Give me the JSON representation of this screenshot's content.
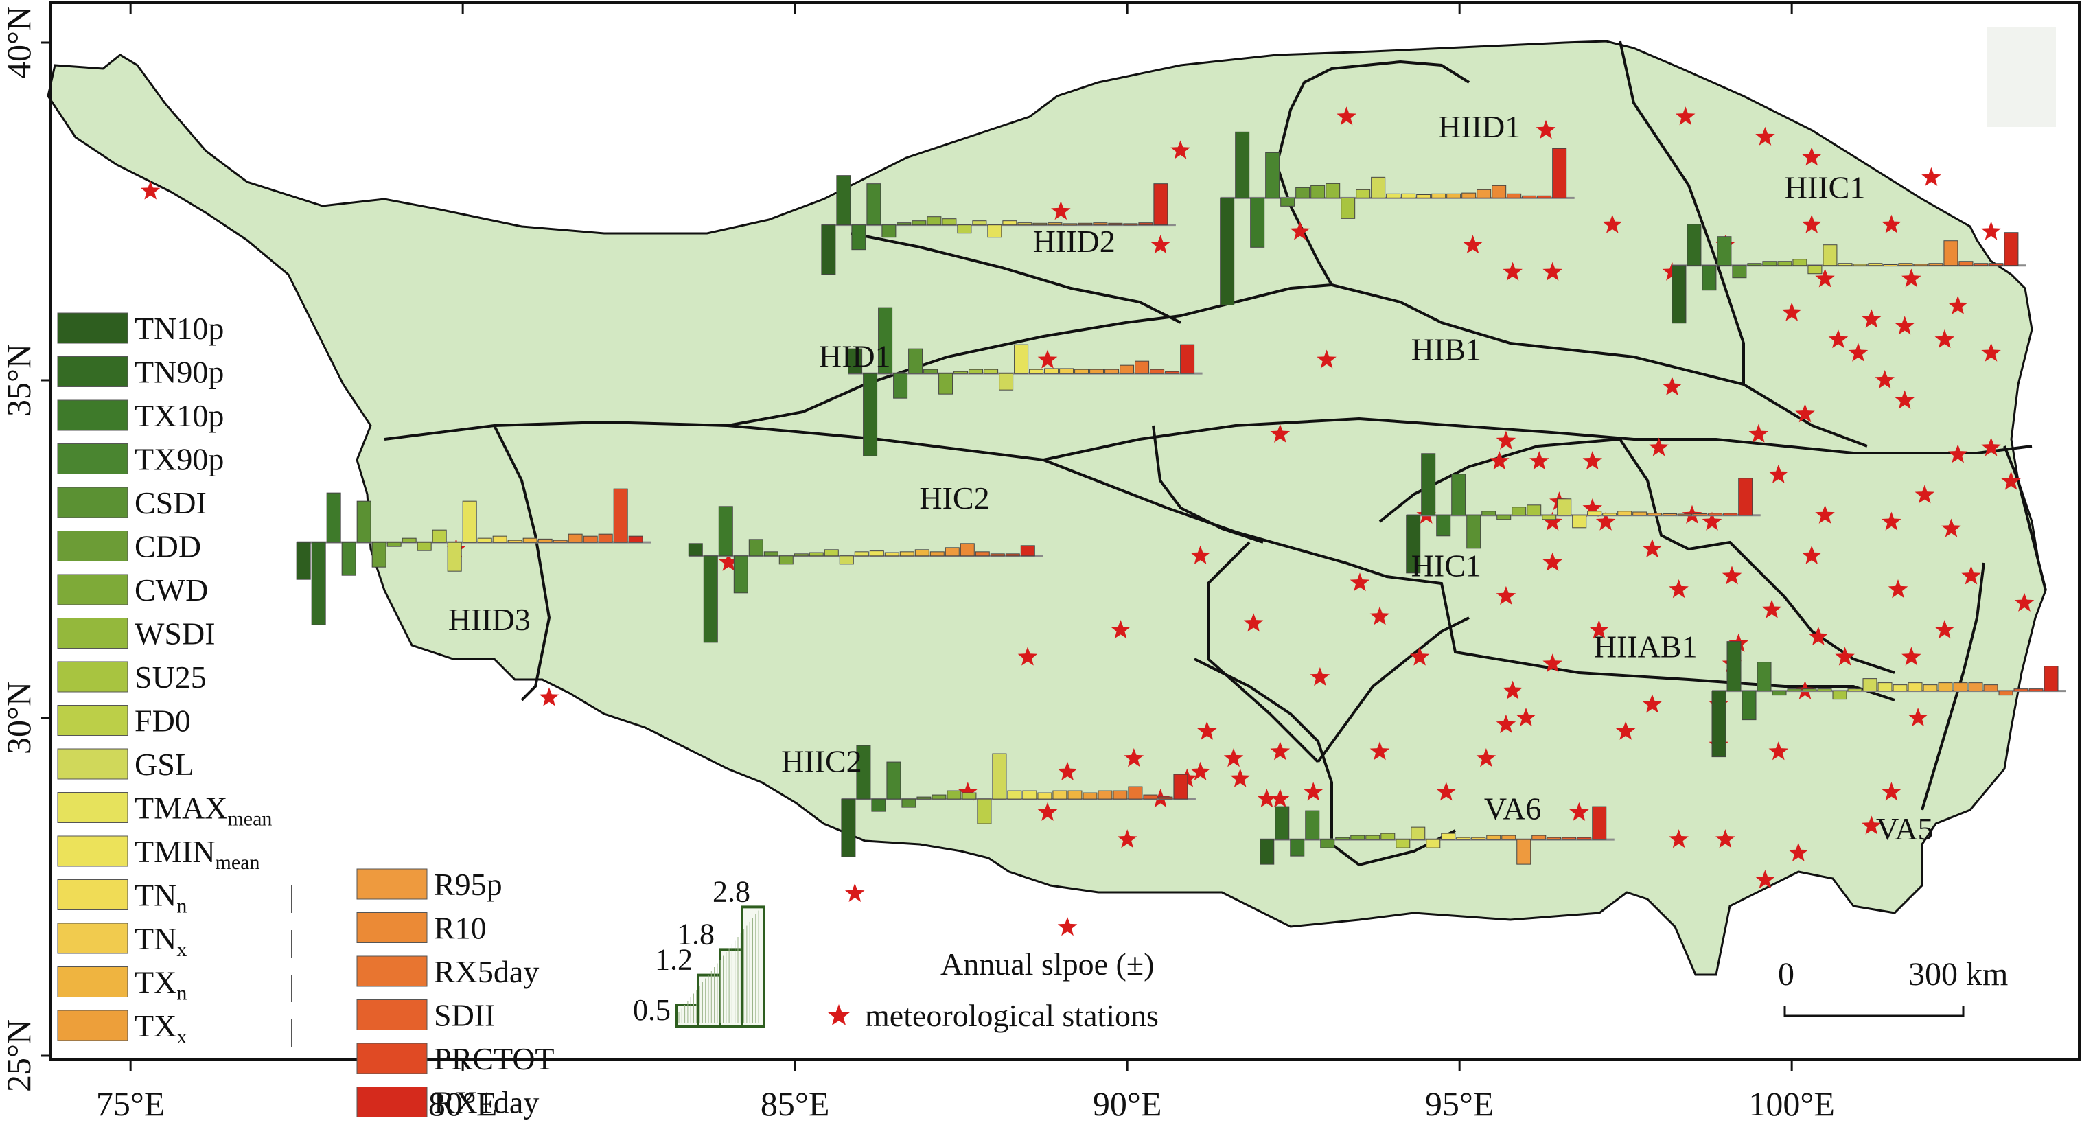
{
  "map": {
    "lon_ticks": [
      {
        "value": 75,
        "label": "75°E"
      },
      {
        "value": 80,
        "label": "80°E"
      },
      {
        "value": 85,
        "label": "85°E"
      },
      {
        "value": 90,
        "label": "90°E"
      },
      {
        "value": 95,
        "label": "95°E"
      },
      {
        "value": 100,
        "label": "100°E"
      }
    ],
    "lat_ticks": [
      {
        "value": 40,
        "label": "40°N"
      },
      {
        "value": 35,
        "label": "35°N"
      },
      {
        "value": 30,
        "label": "30°N"
      },
      {
        "value": 25,
        "label": "25°N"
      }
    ],
    "region_labels": [
      {
        "name": "HIID1",
        "lon": 95.3,
        "lat": 38.6
      },
      {
        "name": "HIIC1",
        "lon": 100.5,
        "lat": 37.7
      },
      {
        "name": "HIID2",
        "lon": 89.2,
        "lat": 36.9
      },
      {
        "name": "HID1",
        "lon": 85.9,
        "lat": 35.2
      },
      {
        "name": "HIB1",
        "lon": 94.8,
        "lat": 35.3
      },
      {
        "name": "HIC2",
        "lon": 87.4,
        "lat": 33.1
      },
      {
        "name": "HIC1",
        "lon": 94.8,
        "lat": 32.1
      },
      {
        "name": "HIID3",
        "lon": 80.4,
        "lat": 31.3
      },
      {
        "name": "HIIAB1",
        "lon": 97.8,
        "lat": 30.9
      },
      {
        "name": "HIIC2",
        "lon": 85.4,
        "lat": 29.2
      },
      {
        "name": "VA6",
        "lon": 95.8,
        "lat": 28.5
      },
      {
        "name": "VA5",
        "lon": 101.7,
        "lat": 28.2
      }
    ],
    "stations": [
      [
        75.3,
        37.8
      ],
      [
        90.8,
        38.4
      ],
      [
        93.3,
        38.9
      ],
      [
        96.3,
        38.7
      ],
      [
        98.4,
        38.9
      ],
      [
        99.6,
        38.6
      ],
      [
        100.3,
        38.3
      ],
      [
        102.1,
        38.0
      ],
      [
        89.0,
        37.5
      ],
      [
        90.5,
        37.0
      ],
      [
        92.6,
        37.2
      ],
      [
        97.3,
        37.3
      ],
      [
        100.3,
        37.3
      ],
      [
        101.5,
        37.3
      ],
      [
        103.0,
        37.2
      ],
      [
        95.2,
        37.0
      ],
      [
        99.0,
        37.0
      ],
      [
        95.8,
        36.6
      ],
      [
        96.4,
        36.6
      ],
      [
        98.2,
        36.6
      ],
      [
        100.5,
        36.5
      ],
      [
        101.8,
        36.5
      ],
      [
        102.5,
        36.1
      ],
      [
        100.0,
        36.0
      ],
      [
        101.2,
        35.9
      ],
      [
        101.7,
        35.8
      ],
      [
        100.7,
        35.6
      ],
      [
        101.0,
        35.4
      ],
      [
        102.3,
        35.6
      ],
      [
        88.8,
        35.3
      ],
      [
        93.0,
        35.3
      ],
      [
        103.0,
        35.4
      ],
      [
        98.2,
        34.9
      ],
      [
        101.4,
        35.0
      ],
      [
        101.7,
        34.7
      ],
      [
        100.2,
        34.5
      ],
      [
        92.3,
        34.2
      ],
      [
        95.7,
        34.1
      ],
      [
        99.5,
        34.2
      ],
      [
        102.5,
        33.9
      ],
      [
        95.6,
        33.8
      ],
      [
        98.0,
        34.0
      ],
      [
        103.0,
        34.0
      ],
      [
        96.2,
        33.8
      ],
      [
        97.0,
        33.8
      ],
      [
        99.8,
        33.6
      ],
      [
        102.0,
        33.3
      ],
      [
        103.3,
        33.5
      ],
      [
        96.5,
        33.2
      ],
      [
        97.0,
        33.1
      ],
      [
        98.5,
        33.0
      ],
      [
        100.5,
        33.0
      ],
      [
        101.5,
        32.9
      ],
      [
        102.4,
        32.8
      ],
      [
        94.5,
        33.0
      ],
      [
        96.4,
        32.9
      ],
      [
        97.2,
        32.9
      ],
      [
        98.8,
        32.9
      ],
      [
        79.9,
        32.5
      ],
      [
        91.1,
        32.4
      ],
      [
        84.0,
        32.3
      ],
      [
        96.4,
        32.3
      ],
      [
        97.9,
        32.5
      ],
      [
        99.1,
        32.1
      ],
      [
        100.3,
        32.4
      ],
      [
        102.7,
        32.1
      ],
      [
        93.5,
        32.0
      ],
      [
        95.7,
        31.8
      ],
      [
        98.3,
        31.9
      ],
      [
        99.7,
        31.6
      ],
      [
        101.6,
        31.9
      ],
      [
        103.5,
        31.7
      ],
      [
        89.9,
        31.3
      ],
      [
        91.9,
        31.4
      ],
      [
        93.8,
        31.5
      ],
      [
        97.1,
        31.3
      ],
      [
        99.2,
        31.1
      ],
      [
        100.4,
        31.2
      ],
      [
        102.3,
        31.3
      ],
      [
        88.5,
        30.9
      ],
      [
        94.4,
        30.9
      ],
      [
        96.4,
        30.8
      ],
      [
        99.1,
        30.8
      ],
      [
        100.8,
        30.9
      ],
      [
        101.8,
        30.9
      ],
      [
        100.2,
        30.4
      ],
      [
        92.9,
        30.6
      ],
      [
        95.8,
        30.4
      ],
      [
        96.0,
        30.0
      ],
      [
        97.9,
        30.2
      ],
      [
        98.9,
        30.2
      ],
      [
        101.9,
        30.0
      ],
      [
        81.3,
        30.3
      ],
      [
        91.2,
        29.8
      ],
      [
        95.7,
        29.9
      ],
      [
        97.5,
        29.8
      ],
      [
        98.9,
        29.6
      ],
      [
        99.8,
        29.5
      ],
      [
        93.8,
        29.5
      ],
      [
        95.4,
        29.4
      ],
      [
        91.6,
        29.4
      ],
      [
        92.3,
        29.5
      ],
      [
        92.1,
        28.8
      ],
      [
        89.1,
        29.2
      ],
      [
        90.1,
        29.4
      ],
      [
        90.9,
        29.1
      ],
      [
        91.1,
        29.2
      ],
      [
        91.7,
        29.1
      ],
      [
        87.6,
        28.9
      ],
      [
        88.8,
        28.6
      ],
      [
        94.8,
        28.9
      ],
      [
        90.0,
        28.2
      ],
      [
        90.5,
        28.8
      ],
      [
        92.8,
        28.9
      ],
      [
        96.8,
        28.6
      ],
      [
        98.3,
        28.2
      ],
      [
        99.0,
        28.2
      ],
      [
        101.2,
        28.4
      ],
      [
        101.5,
        28.9
      ],
      [
        92.3,
        28.8
      ],
      [
        85.9,
        27.4
      ],
      [
        89.1,
        26.9
      ],
      [
        99.6,
        27.6
      ],
      [
        100.1,
        28.0
      ]
    ]
  },
  "charts": [
    {
      "region": "HIID3",
      "axis_lon": 77.5,
      "axis_lat": 32.6,
      "bar_scale": 1.0,
      "values": [
        -0.9,
        -2.0,
        1.2,
        -0.8,
        1.0,
        -0.6,
        -0.1,
        0.1,
        -0.2,
        0.3,
        -0.7,
        1.0,
        0.1,
        0.15,
        0.05,
        0.1,
        0.08,
        0.05,
        0.2,
        0.15,
        0.2,
        1.3,
        0.15
      ]
    },
    {
      "region": "HIC2",
      "axis_lon": 83.4,
      "axis_lat": 32.4,
      "bar_scale": 1.0,
      "values": [
        0.3,
        -2.1,
        1.2,
        -0.9,
        0.4,
        0.1,
        -0.2,
        0.05,
        0.08,
        0.15,
        -0.2,
        0.1,
        0.12,
        0.08,
        0.1,
        0.15,
        0.1,
        0.2,
        0.3,
        0.1,
        0.05,
        0.05,
        0.25
      ]
    },
    {
      "region": "HID1",
      "axis_lon": 85.8,
      "axis_lat": 35.1,
      "bar_scale": 1.0,
      "values": [
        0.6,
        -2.0,
        1.6,
        -0.6,
        0.6,
        0.1,
        -0.5,
        0.05,
        0.1,
        0.1,
        -0.4,
        0.7,
        0.1,
        0.12,
        0.12,
        0.1,
        0.1,
        0.1,
        0.2,
        0.3,
        0.1,
        0.05,
        0.7
      ]
    },
    {
      "region": "HIID2",
      "axis_lon": 85.4,
      "axis_lat": 37.3,
      "bar_scale": 1.0,
      "values": [
        -1.2,
        1.2,
        -0.6,
        1.0,
        -0.3,
        0.05,
        0.1,
        0.2,
        0.15,
        -0.2,
        0.1,
        -0.3,
        0.1,
        0.05,
        0.04,
        0.05,
        0.03,
        0.04,
        0.05,
        0.04,
        0.03,
        0.05,
        1.0
      ]
    },
    {
      "region": "HIID1",
      "axis_lon": 91.4,
      "axis_lat": 37.7,
      "bar_scale": 1.0,
      "values": [
        -2.6,
        1.6,
        -1.2,
        1.1,
        -0.2,
        0.25,
        0.3,
        0.35,
        -0.5,
        0.2,
        0.5,
        0.1,
        0.1,
        0.08,
        0.1,
        0.1,
        0.12,
        0.2,
        0.3,
        0.1,
        0.05,
        0.05,
        1.2
      ]
    },
    {
      "region": "HIIC1",
      "axis_lon": 98.2,
      "axis_lat": 36.7,
      "bar_scale": 1.0,
      "values": [
        -1.4,
        1.0,
        -0.6,
        0.7,
        -0.3,
        0.05,
        0.1,
        0.1,
        0.15,
        -0.2,
        0.5,
        0.05,
        0.03,
        0.05,
        0.02,
        0.05,
        0.03,
        0.05,
        0.6,
        0.1,
        0.05,
        0.05,
        0.8
      ]
    },
    {
      "region": "HIC1",
      "axis_lon": 94.2,
      "axis_lat": 33.0,
      "bar_scale": 1.0,
      "values": [
        -1.4,
        1.5,
        -0.5,
        1.0,
        -0.8,
        0.1,
        -0.1,
        0.2,
        0.25,
        -0.1,
        0.4,
        -0.3,
        0.1,
        0.05,
        0.1,
        0.08,
        0.05,
        0.04,
        0.03,
        0.04,
        0.05,
        0.05,
        0.9
      ]
    },
    {
      "region": "HIIAB1",
      "axis_lon": 98.8,
      "axis_lat": 30.4,
      "bar_scale": 1.0,
      "values": [
        -1.6,
        1.2,
        -0.7,
        0.7,
        -0.1,
        0.05,
        0.05,
        0.05,
        -0.2,
        0.05,
        0.3,
        0.2,
        0.15,
        0.2,
        0.15,
        0.2,
        0.2,
        0.2,
        0.15,
        -0.1,
        0.05,
        0.05,
        0.6
      ]
    },
    {
      "region": "HIIC2",
      "axis_lon": 85.7,
      "axis_lat": 28.8,
      "bar_scale": 1.0,
      "values": [
        -1.4,
        1.3,
        -0.3,
        0.9,
        -0.2,
        0.05,
        0.1,
        0.2,
        0.15,
        -0.6,
        1.1,
        0.2,
        0.2,
        0.15,
        0.2,
        0.2,
        0.15,
        0.2,
        0.2,
        0.3,
        0.1,
        0.05,
        0.6
      ]
    },
    {
      "region": "VA6",
      "axis_lon": 92.0,
      "axis_lat": 28.2,
      "bar_scale": 1.0,
      "values": [
        -0.6,
        0.8,
        -0.4,
        0.7,
        -0.2,
        0.05,
        0.1,
        0.1,
        0.15,
        -0.2,
        0.3,
        -0.2,
        0.15,
        0.05,
        0.05,
        0.1,
        0.1,
        -0.6,
        0.1,
        0.05,
        0.05,
        0.05,
        0.8
      ]
    }
  ],
  "legend": {
    "left_column": [
      {
        "main": "TN10p",
        "sub": "",
        "color": "#2e5e1f"
      },
      {
        "main": "TN90p",
        "sub": "",
        "color": "#356b24"
      },
      {
        "main": "TX10p",
        "sub": "",
        "color": "#3e7a2a"
      },
      {
        "main": "TX90p",
        "sub": "",
        "color": "#4a8530"
      },
      {
        "main": "CSDI",
        "sub": "",
        "color": "#5b9133"
      },
      {
        "main": "CDD",
        "sub": "",
        "color": "#6c9c36"
      },
      {
        "main": "CWD",
        "sub": "",
        "color": "#7eaa38"
      },
      {
        "main": "WSDI",
        "sub": "",
        "color": "#94b83c"
      },
      {
        "main": "SU25",
        "sub": "",
        "color": "#a8c440"
      },
      {
        "main": "FD0",
        "sub": "",
        "color": "#bccf48"
      },
      {
        "main": "GSL",
        "sub": "",
        "color": "#d0d85a"
      },
      {
        "main": "TMAX",
        "sub": "mean",
        "color": "#e6e25c"
      },
      {
        "main": "TMIN",
        "sub": "mean",
        "color": "#ece25a"
      },
      {
        "main": "TN",
        "sub": "n",
        "color": "#f0dc56"
      },
      {
        "main": "TN",
        "sub": "x",
        "color": "#f1cb4e"
      },
      {
        "main": "TX",
        "sub": "n",
        "color": "#efb440"
      },
      {
        "main": "TX",
        "sub": "x",
        "color": "#ed9f3a"
      }
    ],
    "right_column": [
      {
        "main": "R95p",
        "sub": "",
        "color": "#ee9a3e"
      },
      {
        "main": "R10",
        "sub": "",
        "color": "#eb8a36"
      },
      {
        "main": "RX5day",
        "sub": "",
        "color": "#e87530"
      },
      {
        "main": "SDII",
        "sub": "",
        "color": "#e5612b"
      },
      {
        "main": "PRCTOT",
        "sub": "",
        "color": "#e04a24"
      },
      {
        "main": "RX1day",
        "sub": "",
        "color": "#d52a1c"
      }
    ],
    "scale_values": [
      "0.5",
      "1.2",
      "1.8",
      "2.8"
    ],
    "slope_label": "Annual slpoe (±)",
    "station_label": "meteorological stations",
    "scalebar_labels": [
      "0",
      "300 km"
    ]
  },
  "colors": {
    "land": "#d3e8c3",
    "boundary": "#111111",
    "station": "#d81a1a",
    "axis_line": "#8a8a8a"
  }
}
